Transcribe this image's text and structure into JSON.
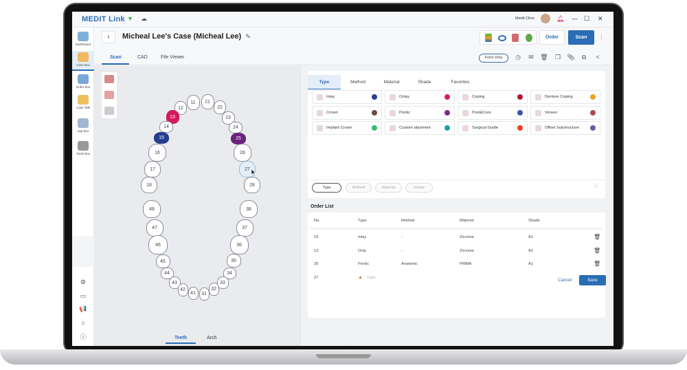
{
  "app": {
    "brand": "MEDIT Link",
    "clinic": "Medit Clinic"
  },
  "sidebar": {
    "items": [
      {
        "label": "Dashboard",
        "icon": "dashboard-icon"
      },
      {
        "label": "Case Box",
        "icon": "case-box-icon",
        "active": true
      },
      {
        "label": "Order Box",
        "icon": "order-box-icon"
      },
      {
        "label": "Case Talk",
        "icon": "case-talk-icon"
      },
      {
        "label": "App Box",
        "icon": "app-box-icon"
      },
      {
        "label": "Trash Box",
        "icon": "trash-box-icon"
      }
    ],
    "bottom": [
      {
        "icon": "settings-icon",
        "glyph": "⚙"
      },
      {
        "icon": "folder-icon",
        "glyph": "▭"
      },
      {
        "icon": "megaphone-icon",
        "glyph": "📢"
      },
      {
        "icon": "home-icon",
        "glyph": "⌂"
      },
      {
        "icon": "info-icon",
        "glyph": "ⓘ"
      }
    ]
  },
  "header": {
    "title": "Micheal Lee's Case (Micheal Lee)",
    "order_label": "Order",
    "scan_label": "Scan",
    "form_only_label": "Form Only",
    "tabs": [
      "Scan",
      "CAD",
      "File Viewer"
    ],
    "active_tab": "Scan"
  },
  "left": {
    "bottom_tabs": [
      "Teeth",
      "Arch"
    ],
    "active_tab": "Teeth",
    "teeth": [
      {
        "n": "11"
      },
      {
        "n": "21"
      },
      {
        "n": "12"
      },
      {
        "n": "22"
      },
      {
        "n": "13",
        "color": "#d6195a"
      },
      {
        "n": "23"
      },
      {
        "n": "14"
      },
      {
        "n": "24"
      },
      {
        "n": "15",
        "color": "#243e8f"
      },
      {
        "n": "25",
        "color": "#6a237f"
      },
      {
        "n": "16"
      },
      {
        "n": "26"
      },
      {
        "n": "17"
      },
      {
        "n": "27",
        "color": "#e3eef8",
        "selected": true
      },
      {
        "n": "18"
      },
      {
        "n": "28"
      },
      {
        "n": "48"
      },
      {
        "n": "38"
      },
      {
        "n": "47"
      },
      {
        "n": "37"
      },
      {
        "n": "46"
      },
      {
        "n": "36"
      },
      {
        "n": "45"
      },
      {
        "n": "35"
      },
      {
        "n": "44"
      },
      {
        "n": "34"
      },
      {
        "n": "43"
      },
      {
        "n": "33"
      },
      {
        "n": "42"
      },
      {
        "n": "32"
      },
      {
        "n": "41"
      },
      {
        "n": "31"
      }
    ]
  },
  "types": {
    "tabs": [
      "Type",
      "Method",
      "Material",
      "Shade",
      "Favorites"
    ],
    "active_tab": "Type",
    "items": [
      {
        "label": "Inlay",
        "color": "#2b3f8f"
      },
      {
        "label": "Onlay",
        "color": "#d81b60"
      },
      {
        "label": "Coping",
        "color": "#b0183a"
      },
      {
        "label": "Denture Coping",
        "color": "#f5a01e"
      },
      {
        "label": "Crown",
        "color": "#6d4c41"
      },
      {
        "label": "Pontic",
        "color": "#7b2a8c"
      },
      {
        "label": "Post&Core",
        "color": "#3f51b5"
      },
      {
        "label": "Veneer",
        "color": "#b04a4a"
      },
      {
        "label": "Implant Crown",
        "color": "#3dbb6e"
      },
      {
        "label": "Custom abutment",
        "color": "#1f9fae"
      },
      {
        "label": "Surgical Guide",
        "color": "#f0421e"
      },
      {
        "label": "Offset Substructure",
        "color": "#6b5aa8"
      }
    ],
    "filters": [
      "Type",
      "Method",
      "Material",
      "Shade"
    ],
    "active_filter": "Type"
  },
  "order_list": {
    "title": "Order List",
    "columns": [
      "No.",
      "Type",
      "Method",
      "Material",
      "Shade"
    ],
    "rows": [
      {
        "no": "15",
        "type": "Inlay",
        "method": "-",
        "material": "Zirconia",
        "shade": "A1"
      },
      {
        "no": "13",
        "type": "Only",
        "method": "-",
        "material": "Zirconia",
        "shade": "A1"
      },
      {
        "no": "25",
        "type": "Pontic",
        "method": "Anatomic",
        "material": "PMMA",
        "shade": "A1"
      },
      {
        "no": "27",
        "type": "Type",
        "warning": true,
        "method": "",
        "material": "",
        "shade": ""
      }
    ]
  },
  "footer": {
    "cancel_label": "Cancel",
    "save_label": "Save"
  },
  "accent": "#2a6cb6"
}
